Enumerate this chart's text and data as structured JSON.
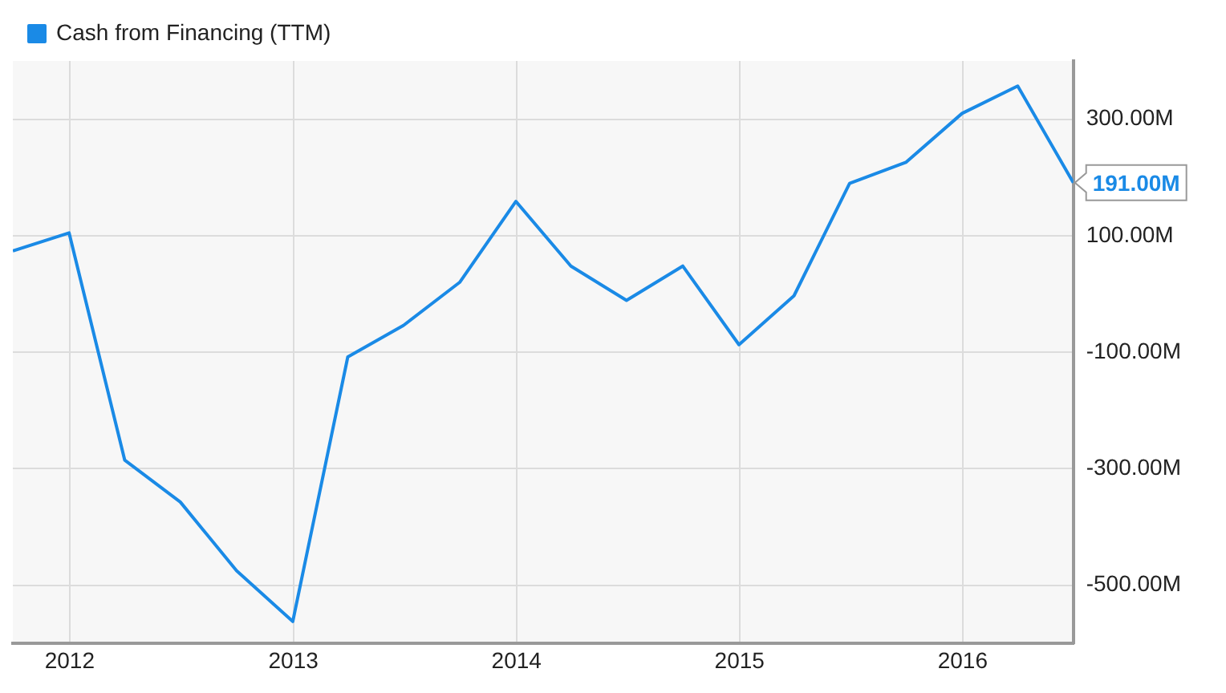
{
  "chart_data": {
    "type": "line",
    "x": [
      "2011-09-30",
      "2011-12-31",
      "2012-03-31",
      "2012-06-30",
      "2012-09-30",
      "2012-12-31",
      "2013-03-31",
      "2013-06-30",
      "2013-09-30",
      "2013-12-31",
      "2014-03-31",
      "2014-06-30",
      "2014-09-30",
      "2014-12-31",
      "2015-03-31",
      "2015-06-30",
      "2015-09-30",
      "2015-12-31",
      "2016-03-31",
      "2016-06-30"
    ],
    "series": [
      {
        "name": "Cash from Financing (TTM)",
        "color": "#1a8ae6",
        "values": [
          74,
          105,
          -285,
          -357,
          -475,
          -562,
          -108,
          -54,
          20,
          159,
          48,
          -11,
          48,
          -87,
          -3,
          190,
          226,
          310,
          357,
          191
        ]
      }
    ],
    "xlim": [
      "2011-09-30",
      "2016-06-30"
    ],
    "xticks": [
      "2012",
      "2013",
      "2014",
      "2015",
      "2016"
    ],
    "ylim": [
      -600,
      400
    ],
    "yticks": [
      {
        "value": -500,
        "label": "-500.00M"
      },
      {
        "value": -300,
        "label": "-300.00M"
      },
      {
        "value": -100,
        "label": "-100.00M"
      },
      {
        "value": 100,
        "label": "100.00M"
      },
      {
        "value": 300,
        "label": "300.00M"
      }
    ],
    "annotations": [
      {
        "text": "191.00M",
        "x": "2016-06-30",
        "y": 191
      }
    ],
    "grid": true,
    "legend": "top left",
    "marker": "none",
    "line_style": "solid"
  }
}
